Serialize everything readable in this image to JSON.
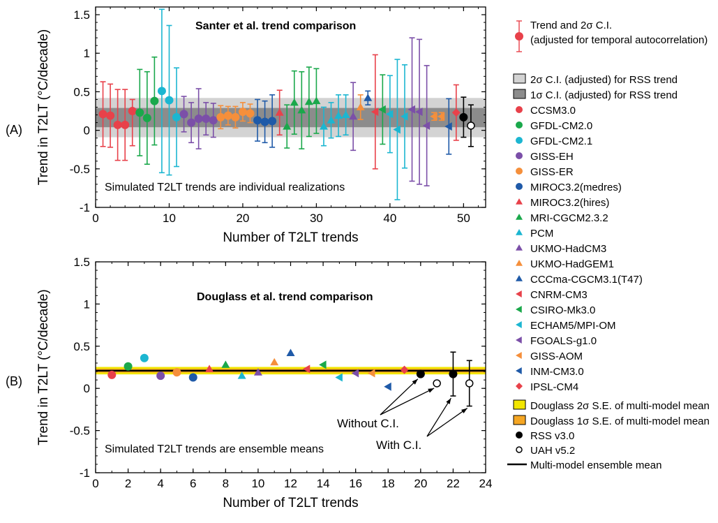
{
  "chart_data": [
    {
      "type": "scatter",
      "panel_label": "(A)",
      "title": "Santer et al. trend comparison",
      "annotation": "Simulated T2LT trends are individual realizations",
      "xlabel": "Number of T2LT trends",
      "ylabel": "Trend in T2LT (°C/decade)",
      "xlim": [
        0,
        53
      ],
      "ylim": [
        -1,
        1.6
      ],
      "x_ticks": [
        0,
        10,
        20,
        30,
        40,
        50
      ],
      "y_ticks": [
        -1,
        -0.5,
        0,
        0.5,
        1,
        1.5
      ],
      "bands": [
        {
          "name": "2σ C.I. (adjusted) for RSS trend",
          "ymin": -0.09,
          "ymax": 0.42,
          "color": "#d3d3d3"
        },
        {
          "name": "1σ C.I. (adjusted) for RSS trend",
          "ymin": 0.04,
          "ymax": 0.29,
          "color": "#8c8c8c"
        }
      ],
      "points": [
        {
          "x": 1,
          "y": 0.21,
          "lo": -0.21,
          "hi": 0.63,
          "model": "CCSM3.0",
          "marker": "circle",
          "color": "#e8414a"
        },
        {
          "x": 2,
          "y": 0.19,
          "lo": -0.22,
          "hi": 0.6,
          "model": "CCSM3.0",
          "marker": "circle",
          "color": "#e8414a"
        },
        {
          "x": 3,
          "y": 0.07,
          "lo": -0.39,
          "hi": 0.53,
          "model": "CCSM3.0",
          "marker": "circle",
          "color": "#e8414a"
        },
        {
          "x": 4,
          "y": 0.07,
          "lo": -0.39,
          "hi": 0.53,
          "model": "CCSM3.0",
          "marker": "circle",
          "color": "#e8414a"
        },
        {
          "x": 5,
          "y": 0.25,
          "lo": -0.2,
          "hi": 0.4,
          "model": "CCSM3.0",
          "marker": "circle",
          "color": "#e8414a"
        },
        {
          "x": 6,
          "y": 0.23,
          "lo": -0.33,
          "hi": 0.79,
          "model": "GFDL-CM2.0",
          "marker": "circle",
          "color": "#1aa84b"
        },
        {
          "x": 7,
          "y": 0.16,
          "lo": -0.44,
          "hi": 0.76,
          "model": "GFDL-CM2.0",
          "marker": "circle",
          "color": "#1aa84b"
        },
        {
          "x": 8,
          "y": 0.38,
          "lo": -0.19,
          "hi": 0.95,
          "model": "GFDL-CM2.0",
          "marker": "circle",
          "color": "#1aa84b"
        },
        {
          "x": 9,
          "y": 0.51,
          "lo": -0.55,
          "hi": 1.57,
          "model": "GFDL-CM2.1",
          "marker": "circle",
          "color": "#1cb6d1"
        },
        {
          "x": 10,
          "y": 0.39,
          "lo": -0.58,
          "hi": 1.36,
          "model": "GFDL-CM2.1",
          "marker": "circle",
          "color": "#1cb6d1"
        },
        {
          "x": 11,
          "y": 0.17,
          "lo": -0.47,
          "hi": 0.81,
          "model": "GFDL-CM2.1",
          "marker": "circle",
          "color": "#1cb6d1"
        },
        {
          "x": 12,
          "y": 0.21,
          "lo": -0.02,
          "hi": 0.44,
          "model": "GISS-EH",
          "marker": "circle",
          "color": "#7b4fa8"
        },
        {
          "x": 13,
          "y": 0.1,
          "lo": -0.16,
          "hi": 0.36,
          "model": "GISS-EH",
          "marker": "circle",
          "color": "#7b4fa8"
        },
        {
          "x": 14,
          "y": 0.15,
          "lo": -0.24,
          "hi": 0.54,
          "model": "GISS-EH",
          "marker": "circle",
          "color": "#7b4fa8"
        },
        {
          "x": 15,
          "y": 0.15,
          "lo": -0.06,
          "hi": 0.36,
          "model": "GISS-EH",
          "marker": "circle",
          "color": "#7b4fa8"
        },
        {
          "x": 16,
          "y": 0.13,
          "lo": -0.09,
          "hi": 0.35,
          "model": "GISS-EH",
          "marker": "circle",
          "color": "#7b4fa8"
        },
        {
          "x": 17,
          "y": 0.17,
          "lo": 0.02,
          "hi": 0.32,
          "model": "GISS-ER",
          "marker": "circle",
          "color": "#f58f3b"
        },
        {
          "x": 18,
          "y": 0.19,
          "lo": 0.07,
          "hi": 0.31,
          "model": "GISS-ER",
          "marker": "circle",
          "color": "#f58f3b"
        },
        {
          "x": 19,
          "y": 0.17,
          "lo": 0.03,
          "hi": 0.31,
          "model": "GISS-ER",
          "marker": "circle",
          "color": "#f58f3b"
        },
        {
          "x": 20,
          "y": 0.24,
          "lo": 0.12,
          "hi": 0.36,
          "model": "GISS-ER",
          "marker": "circle",
          "color": "#f58f3b"
        },
        {
          "x": 21,
          "y": 0.22,
          "lo": 0.1,
          "hi": 0.34,
          "model": "GISS-ER",
          "marker": "circle",
          "color": "#f58f3b"
        },
        {
          "x": 22,
          "y": 0.13,
          "lo": -0.14,
          "hi": 0.4,
          "model": "MIROC3.2(medres)",
          "marker": "circle",
          "color": "#1f5aa8"
        },
        {
          "x": 23,
          "y": 0.11,
          "lo": -0.16,
          "hi": 0.38,
          "model": "MIROC3.2(medres)",
          "marker": "circle",
          "color": "#1f5aa8"
        },
        {
          "x": 24,
          "y": 0.12,
          "lo": -0.22,
          "hi": 0.46,
          "model": "MIROC3.2(medres)",
          "marker": "circle",
          "color": "#1f5aa8"
        },
        {
          "x": 25,
          "y": 0.23,
          "lo": -0.06,
          "hi": 0.52,
          "model": "MIROC3.2(hires)",
          "marker": "triangle-up",
          "color": "#e8414a"
        },
        {
          "x": 26,
          "y": 0.05,
          "lo": -0.23,
          "hi": 0.33,
          "model": "MRI-CGCM2.3.2",
          "marker": "triangle-up",
          "color": "#1aa84b"
        },
        {
          "x": 27,
          "y": 0.36,
          "lo": -0.05,
          "hi": 0.77,
          "model": "MRI-CGCM2.3.2",
          "marker": "triangle-up",
          "color": "#1aa84b"
        },
        {
          "x": 28,
          "y": 0.26,
          "lo": -0.24,
          "hi": 0.76,
          "model": "MRI-CGCM2.3.2",
          "marker": "triangle-up",
          "color": "#1aa84b"
        },
        {
          "x": 29,
          "y": 0.37,
          "lo": -0.08,
          "hi": 0.82,
          "model": "MRI-CGCM2.3.2",
          "marker": "triangle-up",
          "color": "#1aa84b"
        },
        {
          "x": 30,
          "y": 0.38,
          "lo": -0.04,
          "hi": 0.8,
          "model": "MRI-CGCM2.3.2",
          "marker": "triangle-up",
          "color": "#1aa84b"
        },
        {
          "x": 31,
          "y": 0.05,
          "lo": -0.2,
          "hi": 0.3,
          "model": "PCM",
          "marker": "triangle-up",
          "color": "#1cb6d1"
        },
        {
          "x": 32,
          "y": 0.13,
          "lo": -0.1,
          "hi": 0.36,
          "model": "PCM",
          "marker": "triangle-up",
          "color": "#1cb6d1"
        },
        {
          "x": 33,
          "y": 0.19,
          "lo": -0.08,
          "hi": 0.46,
          "model": "PCM",
          "marker": "triangle-up",
          "color": "#1cb6d1"
        },
        {
          "x": 34,
          "y": 0.2,
          "lo": -0.06,
          "hi": 0.46,
          "model": "PCM",
          "marker": "triangle-up",
          "color": "#1cb6d1"
        },
        {
          "x": 35,
          "y": 0.18,
          "lo": -0.26,
          "hi": 0.62,
          "model": "UKMO-HadCM3",
          "marker": "triangle-up",
          "color": "#7b4fa8"
        },
        {
          "x": 36,
          "y": 0.3,
          "lo": 0.14,
          "hi": 0.46,
          "model": "UKMO-HadGEM1",
          "marker": "triangle-up",
          "color": "#f58f3b"
        },
        {
          "x": 37,
          "y": 0.42,
          "lo": 0.33,
          "hi": 0.51,
          "model": "CCCma-CGCM3.1(T47)",
          "marker": "triangle-up",
          "color": "#1f5aa8"
        },
        {
          "x": 38,
          "y": 0.24,
          "lo": -0.5,
          "hi": 0.98,
          "model": "CNRM-CM3",
          "marker": "triangle-left",
          "color": "#e8414a"
        },
        {
          "x": 39,
          "y": 0.27,
          "lo": -0.18,
          "hi": 0.72,
          "model": "CSIRO-Mk3.0",
          "marker": "triangle-left",
          "color": "#1aa84b"
        },
        {
          "x": 40,
          "y": 0.21,
          "lo": -0.29,
          "hi": 0.71,
          "model": "ECHAM5/MPI-OM",
          "marker": "triangle-left",
          "color": "#1cb6d1"
        },
        {
          "x": 41,
          "y": 0.01,
          "lo": -0.9,
          "hi": 0.92,
          "model": "ECHAM5/MPI-OM",
          "marker": "triangle-left",
          "color": "#1cb6d1"
        },
        {
          "x": 42,
          "y": 0.18,
          "lo": -0.49,
          "hi": 0.85,
          "model": "ECHAM5/MPI-OM",
          "marker": "triangle-left",
          "color": "#1cb6d1"
        },
        {
          "x": 43,
          "y": 0.27,
          "lo": -0.66,
          "hi": 1.2,
          "model": "FGOALS-g1.0",
          "marker": "triangle-left",
          "color": "#7b4fa8"
        },
        {
          "x": 44,
          "y": 0.24,
          "lo": -0.7,
          "hi": 1.18,
          "model": "FGOALS-g1.0",
          "marker": "triangle-left",
          "color": "#7b4fa8"
        },
        {
          "x": 45,
          "y": 0.06,
          "lo": -0.72,
          "hi": 0.84,
          "model": "FGOALS-g1.0",
          "marker": "triangle-left",
          "color": "#7b4fa8"
        },
        {
          "x": 46,
          "y": 0.18,
          "lo": 0.13,
          "hi": 0.23,
          "model": "GISS-AOM",
          "marker": "triangle-left",
          "color": "#f58f3b"
        },
        {
          "x": 47,
          "y": 0.18,
          "lo": 0.13,
          "hi": 0.23,
          "model": "GISS-AOM",
          "marker": "triangle-left",
          "color": "#f58f3b"
        },
        {
          "x": 48,
          "y": 0.05,
          "lo": -0.31,
          "hi": 0.41,
          "model": "INM-CM3.0",
          "marker": "triangle-left",
          "color": "#1f5aa8"
        },
        {
          "x": 49,
          "y": 0.23,
          "lo": -0.13,
          "hi": 0.59,
          "model": "IPSL-CM4",
          "marker": "diamond",
          "color": "#e8414a"
        },
        {
          "x": 50,
          "y": 0.17,
          "lo": -0.09,
          "hi": 0.43,
          "model": "RSS v3.0",
          "marker": "circle",
          "color": "#000000"
        },
        {
          "x": 51,
          "y": 0.06,
          "lo": -0.21,
          "hi": 0.33,
          "model": "UAH v5.2",
          "marker": "circle-open",
          "color": "#000000"
        }
      ]
    },
    {
      "type": "scatter",
      "panel_label": "(B)",
      "title": "Douglass et al. trend comparison",
      "annotation": "Simulated T2LT trends are ensemble means",
      "xlabel": "Number of T2LT trends",
      "ylabel": "Trend in T2LT (°C/decade)",
      "xlim": [
        0,
        24
      ],
      "ylim": [
        -1,
        1.5
      ],
      "x_ticks": [
        0,
        2,
        4,
        6,
        8,
        10,
        12,
        14,
        16,
        18,
        20,
        22,
        24
      ],
      "y_ticks": [
        -1,
        -0.5,
        0,
        0.5,
        1,
        1.5
      ],
      "bands": [
        {
          "name": "Douglass 2σ S.E. of multi-model mean",
          "ymin": 0.166,
          "ymax": 0.254,
          "color": "#f2e600"
        },
        {
          "name": "Douglass 1σ S.E. of multi-model mean",
          "ymin": 0.188,
          "ymax": 0.232,
          "color": "#f5a623"
        }
      ],
      "mean_line": {
        "name": "Multi-model ensemble mean",
        "y": 0.21
      },
      "points": [
        {
          "x": 1,
          "y": 0.16,
          "model": "CCSM3.0",
          "marker": "circle",
          "color": "#e8414a"
        },
        {
          "x": 2,
          "y": 0.26,
          "model": "GFDL-CM2.0",
          "marker": "circle",
          "color": "#1aa84b"
        },
        {
          "x": 3,
          "y": 0.36,
          "model": "GFDL-CM2.1",
          "marker": "circle",
          "color": "#1cb6d1"
        },
        {
          "x": 4,
          "y": 0.15,
          "model": "GISS-EH",
          "marker": "circle",
          "color": "#7b4fa8"
        },
        {
          "x": 5,
          "y": 0.19,
          "model": "GISS-ER",
          "marker": "circle",
          "color": "#f58f3b"
        },
        {
          "x": 6,
          "y": 0.13,
          "model": "MIROC3.2(medres)",
          "marker": "circle",
          "color": "#1f5aa8"
        },
        {
          "x": 7,
          "y": 0.23,
          "model": "MIROC3.2(hires)",
          "marker": "triangle-up",
          "color": "#e8414a"
        },
        {
          "x": 8,
          "y": 0.28,
          "model": "MRI-CGCM2.3.2",
          "marker": "triangle-up",
          "color": "#1aa84b"
        },
        {
          "x": 9,
          "y": 0.15,
          "model": "PCM",
          "marker": "triangle-up",
          "color": "#1cb6d1"
        },
        {
          "x": 10,
          "y": 0.19,
          "model": "UKMO-HadCM3",
          "marker": "triangle-up",
          "color": "#7b4fa8"
        },
        {
          "x": 11,
          "y": 0.31,
          "model": "UKMO-HadGEM1",
          "marker": "triangle-up",
          "color": "#f58f3b"
        },
        {
          "x": 12,
          "y": 0.42,
          "model": "CCCma-CGCM3.1(T47)",
          "marker": "triangle-up",
          "color": "#1f5aa8"
        },
        {
          "x": 13,
          "y": 0.23,
          "model": "CNRM-CM3",
          "marker": "triangle-left",
          "color": "#e8414a"
        },
        {
          "x": 14,
          "y": 0.28,
          "model": "CSIRO-Mk3.0",
          "marker": "triangle-left",
          "color": "#1aa84b"
        },
        {
          "x": 15,
          "y": 0.13,
          "model": "ECHAM5/MPI-OM",
          "marker": "triangle-left",
          "color": "#1cb6d1"
        },
        {
          "x": 16,
          "y": 0.18,
          "model": "FGOALS-g1.0",
          "marker": "triangle-left",
          "color": "#7b4fa8"
        },
        {
          "x": 17,
          "y": 0.18,
          "model": "GISS-AOM",
          "marker": "triangle-left",
          "color": "#f58f3b"
        },
        {
          "x": 18,
          "y": 0.02,
          "model": "INM-CM3.0",
          "marker": "triangle-left",
          "color": "#1f5aa8"
        },
        {
          "x": 19,
          "y": 0.22,
          "model": "IPSL-CM4",
          "marker": "diamond",
          "color": "#e8414a"
        },
        {
          "x": 20,
          "y": 0.17,
          "model": "RSS v3.0",
          "marker": "circle",
          "color": "#000000"
        },
        {
          "x": 21,
          "y": 0.06,
          "model": "UAH v5.2",
          "marker": "circle-open",
          "color": "#000000"
        },
        {
          "x": 22,
          "y": 0.17,
          "lo": -0.09,
          "hi": 0.43,
          "model": "RSS v3.0",
          "marker": "circle",
          "color": "#000000"
        },
        {
          "x": 23,
          "y": 0.06,
          "lo": -0.21,
          "hi": 0.33,
          "model": "UAH v5.2",
          "marker": "circle-open",
          "color": "#000000"
        }
      ],
      "callouts": [
        {
          "text": "Without C.I.",
          "targets": [
            20,
            21
          ]
        },
        {
          "text": "With C.I.",
          "targets": [
            22,
            23
          ]
        }
      ]
    }
  ],
  "legend": {
    "items": [
      {
        "label": "Trend and 2σ  C.I.",
        "label2": "(adjusted for temporal autocorrelation)",
        "symbol": "errorbar",
        "color": "#e8414a"
      },
      {
        "label": "2σ  C.I. (adjusted) for RSS trend",
        "symbol": "box",
        "color": "#d3d3d3"
      },
      {
        "label": "1σ  C.I. (adjusted) for RSS trend",
        "symbol": "box",
        "color": "#8c8c8c"
      },
      {
        "label": "CCSM3.0",
        "symbol": "circle",
        "color": "#e8414a"
      },
      {
        "label": "GFDL-CM2.0",
        "symbol": "circle",
        "color": "#1aa84b"
      },
      {
        "label": "GFDL-CM2.1",
        "symbol": "circle",
        "color": "#1cb6d1"
      },
      {
        "label": "GISS-EH",
        "symbol": "circle",
        "color": "#7b4fa8"
      },
      {
        "label": "GISS-ER",
        "symbol": "circle",
        "color": "#f58f3b"
      },
      {
        "label": "MIROC3.2(medres)",
        "symbol": "circle",
        "color": "#1f5aa8"
      },
      {
        "label": "MIROC3.2(hires)",
        "symbol": "triangle-up",
        "color": "#e8414a"
      },
      {
        "label": "MRI-CGCM2.3.2",
        "symbol": "triangle-up",
        "color": "#1aa84b"
      },
      {
        "label": "PCM",
        "symbol": "triangle-up",
        "color": "#1cb6d1"
      },
      {
        "label": "UKMO-HadCM3",
        "symbol": "triangle-up",
        "color": "#7b4fa8"
      },
      {
        "label": "UKMO-HadGEM1",
        "symbol": "triangle-up",
        "color": "#f58f3b"
      },
      {
        "label": "CCCma-CGCM3.1(T47)",
        "symbol": "triangle-up",
        "color": "#1f5aa8"
      },
      {
        "label": "CNRM-CM3",
        "symbol": "triangle-left",
        "color": "#e8414a"
      },
      {
        "label": "CSIRO-Mk3.0",
        "symbol": "triangle-left",
        "color": "#1aa84b"
      },
      {
        "label": "ECHAM5/MPI-OM",
        "symbol": "triangle-left",
        "color": "#1cb6d1"
      },
      {
        "label": "FGOALS-g1.0",
        "symbol": "triangle-left",
        "color": "#7b4fa8"
      },
      {
        "label": "GISS-AOM",
        "symbol": "triangle-left",
        "color": "#f58f3b"
      },
      {
        "label": "INM-CM3.0",
        "symbol": "triangle-left",
        "color": "#1f5aa8"
      },
      {
        "label": "IPSL-CM4",
        "symbol": "diamond",
        "color": "#e8414a"
      },
      {
        "label": "Douglass 2σ S.E. of multi-model mean",
        "symbol": "box",
        "color": "#f2e600"
      },
      {
        "label": "Douglass 1σ S.E. of multi-model mean",
        "symbol": "box",
        "color": "#f5a623"
      },
      {
        "label": "RSS v3.0",
        "symbol": "circle",
        "color": "#000000"
      },
      {
        "label": "UAH v5.2",
        "symbol": "circle-open",
        "color": "#000000"
      },
      {
        "label": "Multi-model ensemble mean",
        "symbol": "line",
        "color": "#000000"
      }
    ]
  }
}
